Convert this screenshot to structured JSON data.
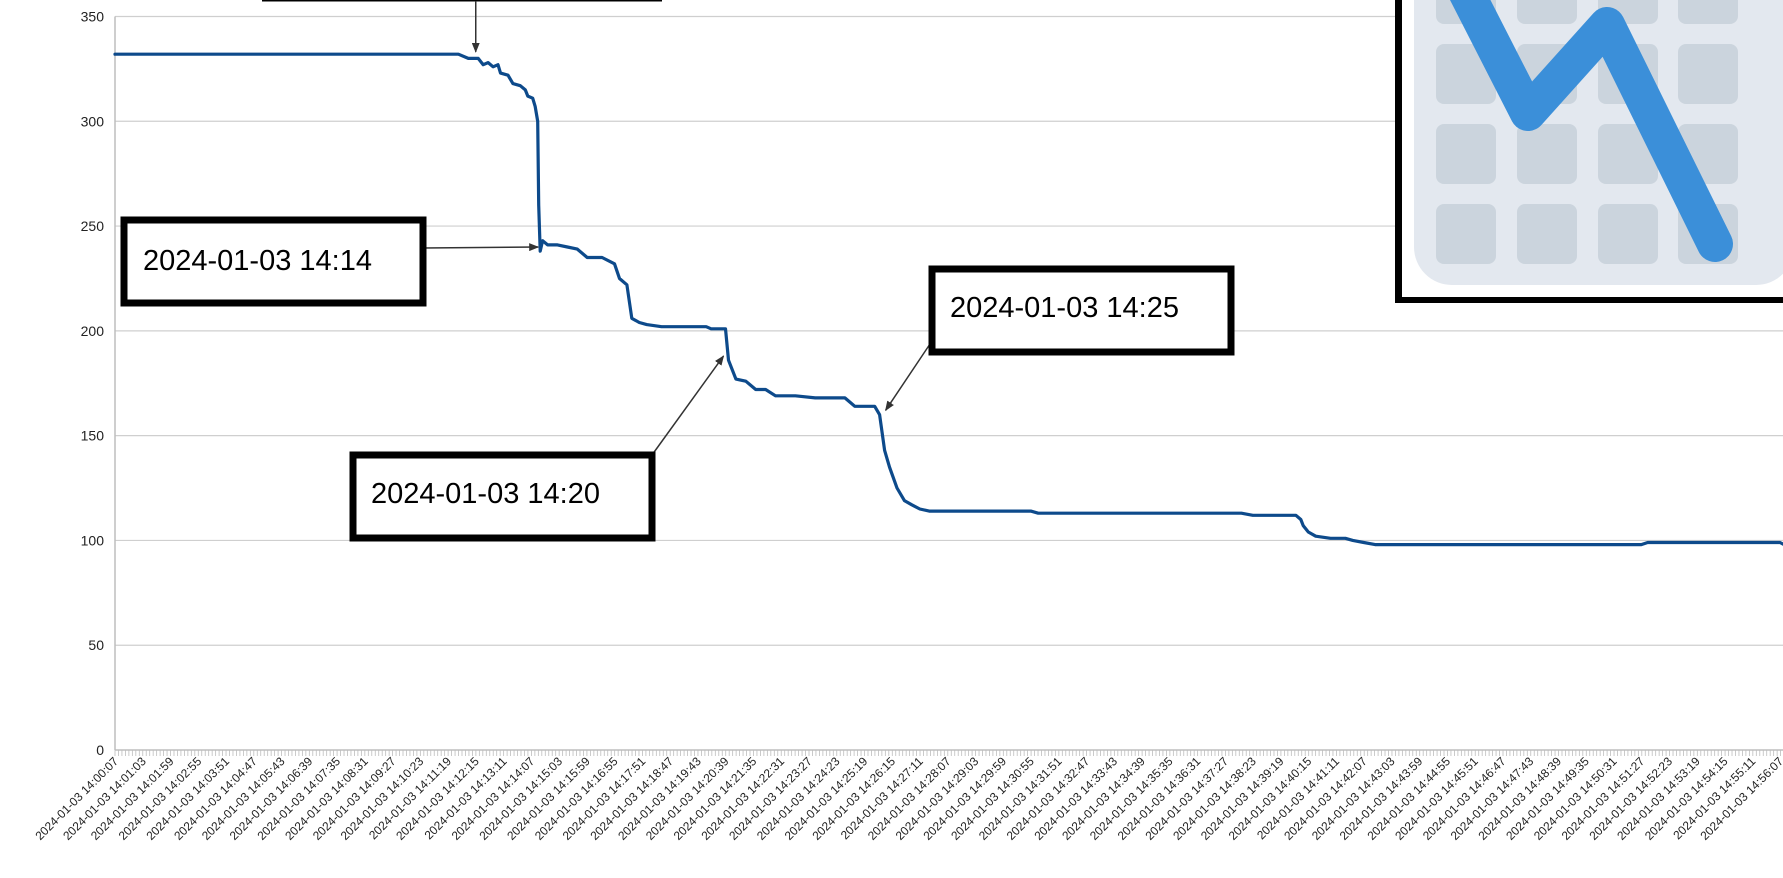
{
  "chart_data": {
    "type": "line",
    "title": "",
    "xlabel": "",
    "ylabel": "",
    "ylim": [
      0,
      350
    ],
    "y_ticks": [
      0,
      50,
      100,
      150,
      200,
      250,
      300,
      350
    ],
    "grid": true,
    "legend": "none",
    "line_color": "#0d4a8b",
    "x_tick_labels": [
      "2024-01-03 14:00:07",
      "2024-01-03 14:01:03",
      "2024-01-03 14:01:59",
      "2024-01-03 14:02:55",
      "2024-01-03 14:03:51",
      "2024-01-03 14:04:47",
      "2024-01-03 14:05:43",
      "2024-01-03 14:06:39",
      "2024-01-03 14:07:35",
      "2024-01-03 14:08:31",
      "2024-01-03 14:09:27",
      "2024-01-03 14:10:23",
      "2024-01-03 14:11:19",
      "2024-01-03 14:12:15",
      "2024-01-03 14:13:11",
      "2024-01-03 14:14:07",
      "2024-01-03 14:15:03",
      "2024-01-03 14:15:59",
      "2024-01-03 14:16:55",
      "2024-01-03 14:17:51",
      "2024-01-03 14:18:47",
      "2024-01-03 14:19:43",
      "2024-01-03 14:20:39",
      "2024-01-03 14:21:35",
      "2024-01-03 14:22:31",
      "2024-01-03 14:23:27",
      "2024-01-03 14:24:23",
      "2024-01-03 14:25:19",
      "2024-01-03 14:26:15",
      "2024-01-03 14:27:11",
      "2024-01-03 14:28:07",
      "2024-01-03 14:29:03",
      "2024-01-03 14:29:59",
      "2024-01-03 14:30:55",
      "2024-01-03 14:31:51",
      "2024-01-03 14:32:47",
      "2024-01-03 14:33:43",
      "2024-01-03 14:34:39",
      "2024-01-03 14:35:35",
      "2024-01-03 14:36:31",
      "2024-01-03 14:37:27",
      "2024-01-03 14:38:23",
      "2024-01-03 14:39:19",
      "2024-01-03 14:40:15",
      "2024-01-03 14:41:11",
      "2024-01-03 14:42:07",
      "2024-01-03 14:43:03",
      "2024-01-03 14:43:59",
      "2024-01-03 14:44:55",
      "2024-01-03 14:45:51",
      "2024-01-03 14:46:47",
      "2024-01-03 14:47:43",
      "2024-01-03 14:48:39",
      "2024-01-03 14:49:35",
      "2024-01-03 14:50:31",
      "2024-01-03 14:51:27",
      "2024-01-03 14:52:23",
      "2024-01-03 14:53:19",
      "2024-01-03 14:54:15",
      "2024-01-03 14:55:11",
      "2024-01-03 14:56:07"
    ],
    "series": [
      {
        "points": [
          [
            "14:00:07",
            332
          ],
          [
            "14:01:03",
            332
          ],
          [
            "14:02:00",
            332
          ],
          [
            "14:03:00",
            332
          ],
          [
            "14:04:00",
            332
          ],
          [
            "14:05:00",
            332
          ],
          [
            "14:06:00",
            332
          ],
          [
            "14:07:00",
            332
          ],
          [
            "14:08:00",
            332
          ],
          [
            "14:09:00",
            332
          ],
          [
            "14:10:00",
            332
          ],
          [
            "14:11:00",
            332
          ],
          [
            "14:11:40",
            332
          ],
          [
            "14:12:00",
            330
          ],
          [
            "14:12:20",
            330
          ],
          [
            "14:12:30",
            327
          ],
          [
            "14:12:40",
            328
          ],
          [
            "14:12:50",
            326
          ],
          [
            "14:13:00",
            327
          ],
          [
            "14:13:05",
            323
          ],
          [
            "14:13:20",
            322
          ],
          [
            "14:13:30",
            318
          ],
          [
            "14:13:45",
            317
          ],
          [
            "14:13:55",
            315
          ],
          [
            "14:14:00",
            312
          ],
          [
            "14:14:10",
            311
          ],
          [
            "14:14:15",
            307
          ],
          [
            "14:14:20",
            300
          ],
          [
            "14:14:22",
            260
          ],
          [
            "14:14:25",
            238
          ],
          [
            "14:14:30",
            243
          ],
          [
            "14:14:40",
            241
          ],
          [
            "14:15:00",
            241
          ],
          [
            "14:15:20",
            240
          ],
          [
            "14:15:40",
            239
          ],
          [
            "14:16:00",
            235
          ],
          [
            "14:16:30",
            235
          ],
          [
            "14:16:55",
            232
          ],
          [
            "14:17:05",
            225
          ],
          [
            "14:17:20",
            222
          ],
          [
            "14:17:30",
            206
          ],
          [
            "14:17:45",
            204
          ],
          [
            "14:18:00",
            203
          ],
          [
            "14:18:30",
            202
          ],
          [
            "14:19:00",
            202
          ],
          [
            "14:19:30",
            202
          ],
          [
            "14:20:00",
            202
          ],
          [
            "14:20:10",
            201
          ],
          [
            "14:20:39",
            201
          ],
          [
            "14:20:45",
            186
          ],
          [
            "14:21:00",
            177
          ],
          [
            "14:21:20",
            176
          ],
          [
            "14:21:40",
            172
          ],
          [
            "14:22:00",
            172
          ],
          [
            "14:22:20",
            169
          ],
          [
            "14:23:00",
            169
          ],
          [
            "14:23:40",
            168
          ],
          [
            "14:24:00",
            168
          ],
          [
            "14:24:40",
            168
          ],
          [
            "14:24:50",
            166
          ],
          [
            "14:25:00",
            164
          ],
          [
            "14:25:40",
            164
          ],
          [
            "14:25:50",
            160
          ],
          [
            "14:26:00",
            143
          ],
          [
            "14:26:10",
            135
          ],
          [
            "14:26:25",
            125
          ],
          [
            "14:26:40",
            119
          ],
          [
            "14:26:55",
            117
          ],
          [
            "14:27:11",
            115
          ],
          [
            "14:27:30",
            114
          ],
          [
            "14:28:00",
            114
          ],
          [
            "14:29:00",
            114
          ],
          [
            "14:30:00",
            114
          ],
          [
            "14:30:55",
            114
          ],
          [
            "14:31:10",
            113
          ],
          [
            "14:32:00",
            113
          ],
          [
            "14:33:00",
            113
          ],
          [
            "14:34:00",
            113
          ],
          [
            "14:35:00",
            113
          ],
          [
            "14:36:00",
            113
          ],
          [
            "14:37:00",
            113
          ],
          [
            "14:38:00",
            113
          ],
          [
            "14:38:23",
            112
          ],
          [
            "14:39:00",
            112
          ],
          [
            "14:39:50",
            112
          ],
          [
            "14:40:00",
            110
          ],
          [
            "14:40:05",
            107
          ],
          [
            "14:40:15",
            104
          ],
          [
            "14:40:30",
            102
          ],
          [
            "14:41:00",
            101
          ],
          [
            "14:41:30",
            101
          ],
          [
            "14:41:45",
            100
          ],
          [
            "14:42:07",
            99
          ],
          [
            "14:42:30",
            98
          ],
          [
            "14:43:00",
            98
          ],
          [
            "14:44:00",
            98
          ],
          [
            "14:45:00",
            98
          ],
          [
            "14:46:00",
            98
          ],
          [
            "14:47:00",
            98
          ],
          [
            "14:48:00",
            98
          ],
          [
            "14:49:00",
            98
          ],
          [
            "14:50:00",
            98
          ],
          [
            "14:51:00",
            98
          ],
          [
            "14:51:27",
            98
          ],
          [
            "14:51:40",
            99
          ],
          [
            "14:52:00",
            99
          ],
          [
            "14:53:00",
            99
          ],
          [
            "14:54:00",
            99
          ],
          [
            "14:55:00",
            99
          ],
          [
            "14:56:07",
            99
          ],
          [
            "14:56:15",
            98
          ],
          [
            "14:56:40",
            98
          ]
        ]
      }
    ],
    "annotations": [
      {
        "text": "2024-01-03 14:14",
        "target": [
          "14:14:25",
          240
        ]
      },
      {
        "text": "2024-01-03 14:20",
        "target": [
          "14:20:39",
          188
        ]
      },
      {
        "text": "2024-01-03 14:25",
        "target": [
          "14:25:50",
          164
        ]
      }
    ],
    "top_callout_target": [
      "14:12:15",
      336
    ],
    "logo_icon": "chart-trend-down-icon",
    "logo_colors": {
      "tile": "#e3e8ef",
      "cell": "#cbd4dd",
      "line": "#3b8fd9",
      "frame": "#000000"
    }
  }
}
